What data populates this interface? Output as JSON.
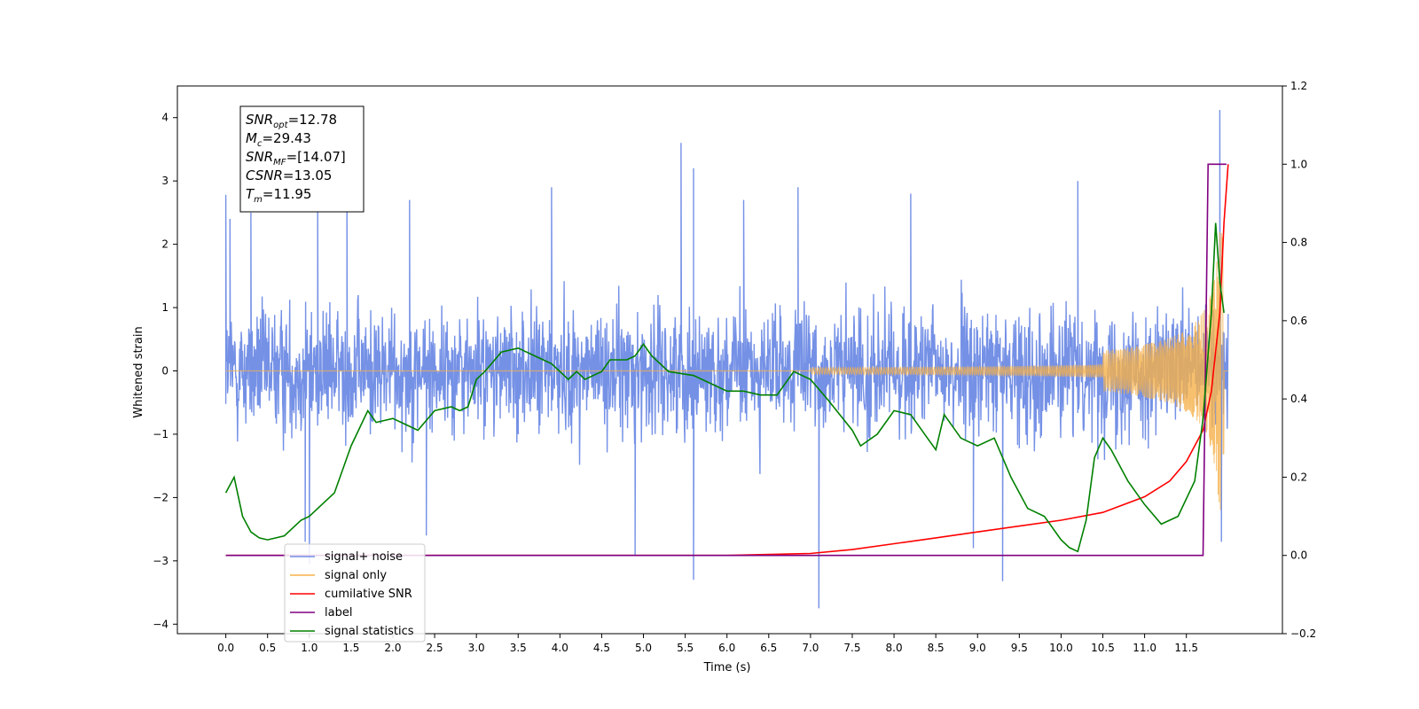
{
  "chart_data": {
    "type": "line",
    "xlabel": "Time (s)",
    "ylabel": "Whitened strain",
    "xlim": [
      -0.58,
      12.65
    ],
    "ylim": [
      -4.15,
      4.5
    ],
    "y2lim": [
      -0.2,
      1.2
    ],
    "xticks": [
      "0.0",
      "0.5",
      "1.0",
      "1.5",
      "2.0",
      "2.5",
      "3.0",
      "3.5",
      "4.0",
      "4.5",
      "5.0",
      "5.5",
      "6.0",
      "6.5",
      "7.0",
      "7.5",
      "8.0",
      "8.5",
      "9.0",
      "9.5",
      "10.0",
      "10.5",
      "11.0",
      "11.5"
    ],
    "xtick_values": [
      0,
      0.5,
      1,
      1.5,
      2,
      2.5,
      3,
      3.5,
      4,
      4.5,
      5,
      5.5,
      6,
      6.5,
      7,
      7.5,
      8,
      8.5,
      9,
      9.5,
      10,
      10.5,
      11,
      11.5
    ],
    "yticks": [
      "4",
      "3",
      "2",
      "1",
      "0",
      "−1",
      "−2",
      "−3",
      "−4"
    ],
    "ytick_values": [
      4,
      3,
      2,
      1,
      0,
      -1,
      -2,
      -3,
      -4
    ],
    "y2ticks": [
      "1.2",
      "1.0",
      "0.8",
      "0.6",
      "0.4",
      "0.2",
      "0.0",
      "−0.2"
    ],
    "y2tick_values": [
      1.2,
      1.0,
      0.8,
      0.6,
      0.4,
      0.2,
      0.0,
      -0.2
    ],
    "grid": false,
    "legend_position": "lower-left",
    "annotation": {
      "lines": [
        {
          "base": "SNR",
          "sub": "opt",
          "value": "=12.78"
        },
        {
          "base": "M",
          "sub": "c",
          "value": "=29.43"
        },
        {
          "base": "SNR",
          "sub": "MF",
          "value": "=[14.07]"
        },
        {
          "base": "CSNR",
          "sub": "",
          "value": "=13.05"
        },
        {
          "base": "T",
          "sub": "m",
          "value": "=11.95"
        }
      ]
    },
    "series": [
      {
        "name": "signal+ noise",
        "color": "#7591e6",
        "axis": "left",
        "style": "dense-noise",
        "t_range": [
          0.0,
          12.0
        ],
        "noise_sigma": 0.72,
        "spikes": [
          {
            "x": 0.0,
            "y": 2.78
          },
          {
            "x": 0.05,
            "y": 2.4
          },
          {
            "x": 0.3,
            "y": 2.5
          },
          {
            "x": 0.95,
            "y": -2.7
          },
          {
            "x": 1.0,
            "y": -3.05
          },
          {
            "x": 1.1,
            "y": 2.7
          },
          {
            "x": 1.45,
            "y": 2.9
          },
          {
            "x": 2.2,
            "y": 2.7
          },
          {
            "x": 2.4,
            "y": -2.6
          },
          {
            "x": 3.9,
            "y": 2.9
          },
          {
            "x": 4.9,
            "y": -2.92
          },
          {
            "x": 5.45,
            "y": 3.6
          },
          {
            "x": 5.6,
            "y": 3.2
          },
          {
            "x": 5.6,
            "y": -3.3
          },
          {
            "x": 6.2,
            "y": 2.7
          },
          {
            "x": 6.85,
            "y": 2.9
          },
          {
            "x": 7.1,
            "y": -3.75
          },
          {
            "x": 8.2,
            "y": 2.8
          },
          {
            "x": 8.95,
            "y": -2.8
          },
          {
            "x": 9.3,
            "y": -3.32
          },
          {
            "x": 10.2,
            "y": 3.0
          },
          {
            "x": 11.9,
            "y": 4.12
          },
          {
            "x": 11.92,
            "y": -2.7
          }
        ]
      },
      {
        "name": "signal only",
        "color": "#f5b04a",
        "axis": "left",
        "style": "chirp",
        "t_range": [
          0.0,
          12.0
        ],
        "merger_time": 11.95,
        "peak_amplitude": 2.2
      },
      {
        "name": "cumilative SNR",
        "color": "#ff0000",
        "axis": "right",
        "x": [
          0.0,
          6.0,
          7.0,
          7.5,
          8.0,
          8.5,
          9.0,
          9.5,
          10.0,
          10.5,
          11.0,
          11.3,
          11.5,
          11.7,
          11.8,
          11.9,
          11.95,
          12.0
        ],
        "y": [
          0.0,
          0.0,
          0.005,
          0.015,
          0.03,
          0.045,
          0.06,
          0.075,
          0.09,
          0.11,
          0.15,
          0.19,
          0.24,
          0.32,
          0.42,
          0.62,
          0.85,
          1.0
        ]
      },
      {
        "name": "label",
        "color": "#800080",
        "axis": "right",
        "x": [
          0.0,
          11.7,
          11.76,
          11.98
        ],
        "y": [
          0.0,
          0.0,
          1.0,
          1.0
        ]
      },
      {
        "name": "signal statistics",
        "color": "#008000",
        "axis": "right",
        "x": [
          0.0,
          0.1,
          0.2,
          0.3,
          0.4,
          0.5,
          0.7,
          0.8,
          0.9,
          1.0,
          1.2,
          1.3,
          1.5,
          1.7,
          1.8,
          2.0,
          2.1,
          2.3,
          2.5,
          2.7,
          2.8,
          2.9,
          3.0,
          3.1,
          3.3,
          3.5,
          3.7,
          3.9,
          4.0,
          4.1,
          4.2,
          4.3,
          4.5,
          4.6,
          4.8,
          4.9,
          5.0,
          5.1,
          5.3,
          5.6,
          5.8,
          6.0,
          6.2,
          6.4,
          6.6,
          6.8,
          7.0,
          7.2,
          7.5,
          7.6,
          7.8,
          8.0,
          8.2,
          8.4,
          8.5,
          8.6,
          8.8,
          9.0,
          9.2,
          9.4,
          9.6,
          9.8,
          10.0,
          10.1,
          10.2,
          10.3,
          10.4,
          10.5,
          10.6,
          10.8,
          11.0,
          11.2,
          11.4,
          11.6,
          11.7,
          11.8,
          11.85,
          11.9,
          11.95
        ],
        "y": [
          0.16,
          0.2,
          0.1,
          0.06,
          0.045,
          0.04,
          0.05,
          0.07,
          0.09,
          0.1,
          0.14,
          0.16,
          0.28,
          0.37,
          0.34,
          0.35,
          0.34,
          0.32,
          0.37,
          0.38,
          0.37,
          0.38,
          0.45,
          0.47,
          0.52,
          0.53,
          0.51,
          0.49,
          0.47,
          0.45,
          0.47,
          0.45,
          0.47,
          0.5,
          0.5,
          0.51,
          0.54,
          0.51,
          0.47,
          0.46,
          0.44,
          0.42,
          0.42,
          0.41,
          0.41,
          0.47,
          0.45,
          0.4,
          0.32,
          0.28,
          0.31,
          0.37,
          0.36,
          0.3,
          0.27,
          0.36,
          0.3,
          0.28,
          0.3,
          0.2,
          0.12,
          0.1,
          0.04,
          0.02,
          0.01,
          0.09,
          0.25,
          0.3,
          0.27,
          0.19,
          0.13,
          0.08,
          0.1,
          0.19,
          0.35,
          0.62,
          0.85,
          0.7,
          0.62
        ]
      }
    ]
  }
}
